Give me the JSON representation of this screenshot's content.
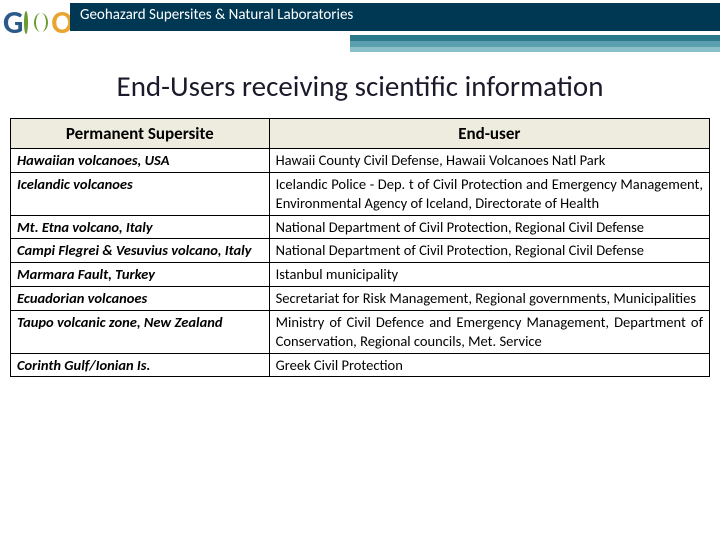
{
  "header": {
    "logo_text1": "G",
    "logo_text2": "O",
    "title": "Geohazard Supersites & Natural Laboratories"
  },
  "page_title": "End-Users receiving scientific information",
  "table": {
    "columns": [
      "Permanent  Supersite",
      "End-user"
    ],
    "rows": [
      {
        "site": "Hawaiian volcanoes, USA",
        "user": "Hawaii County Civil Defense, Hawaii Volcanoes Natl Park"
      },
      {
        "site": "Icelandic volcanoes",
        "user": "Icelandic Police - Dep. t of Civil Protection and Emergency Management, Environmental Agency of Iceland, Directorate of Health"
      },
      {
        "site": "Mt. Etna volcano, Italy",
        "user": "National Department of Civil Protection, Regional Civil Defense"
      },
      {
        "site": "Campi Flegrei & Vesuvius volcano, Italy",
        "user": "National Department of Civil Protection, Regional Civil Defense"
      },
      {
        "site": "Marmara Fault, Turkey",
        "user": "Istanbul municipality"
      },
      {
        "site": "Ecuadorian volcanoes",
        "user": "Secretariat for Risk Management, Regional governments, Municipalities"
      },
      {
        "site": "Taupo volcanic zone, New Zealand",
        "user": "Ministry of Civil Defence and Emergency Management, Department of Conservation, Regional councils, Met. Service"
      },
      {
        "site": "Corinth Gulf/Ionian Is.",
        "user": "Greek Civil Protection"
      }
    ]
  },
  "styles": {
    "header_bg": "#003854",
    "stripe_colors": [
      "#2c7a8c",
      "#5aa0b0",
      "#8cc0c8"
    ],
    "th_bg": "#eeecde",
    "border_color": "#000000",
    "title_color": "#1a1a2a"
  }
}
